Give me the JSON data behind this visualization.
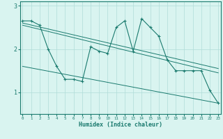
{
  "xlabel": "Humidex (Indice chaleur)",
  "x": [
    0,
    1,
    2,
    3,
    4,
    5,
    6,
    7,
    8,
    9,
    10,
    11,
    12,
    13,
    14,
    15,
    16,
    17,
    18,
    19,
    20,
    21,
    22,
    23
  ],
  "y_line": [
    2.65,
    2.65,
    2.55,
    2.0,
    1.6,
    1.3,
    1.3,
    1.25,
    2.05,
    1.95,
    1.9,
    2.5,
    2.65,
    1.95,
    2.7,
    2.5,
    2.3,
    1.75,
    1.5,
    1.5,
    1.5,
    1.5,
    1.05,
    0.75
  ],
  "trend1_x": [
    0,
    23
  ],
  "trend1_y": [
    2.6,
    1.55
  ],
  "trend2_x": [
    0,
    23
  ],
  "trend2_y": [
    2.55,
    1.45
  ],
  "trend3_x": [
    0,
    23
  ],
  "trend3_y": [
    1.6,
    0.75
  ],
  "ylim": [
    0.5,
    3.1
  ],
  "yticks": [
    1,
    2,
    3
  ],
  "xticks": [
    0,
    1,
    2,
    3,
    4,
    5,
    6,
    7,
    8,
    9,
    10,
    11,
    12,
    13,
    14,
    15,
    16,
    17,
    18,
    19,
    20,
    21,
    22,
    23
  ],
  "line_color": "#1a7a6e",
  "bg_color": "#d9f4f0",
  "grid_color": "#b0ddd8",
  "tick_color": "#1a7a6e",
  "label_color": "#1a7a6e",
  "title_color": "#1a7a6e"
}
